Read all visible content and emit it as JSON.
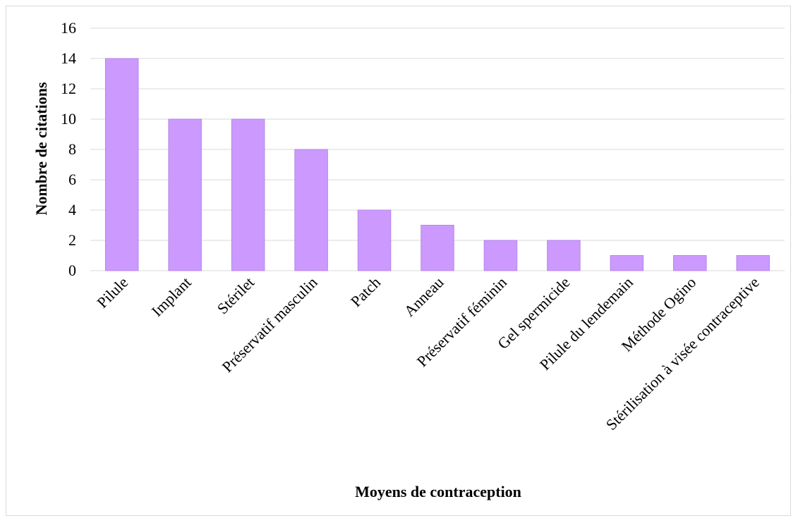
{
  "chart_data": {
    "type": "bar",
    "title": "",
    "xlabel": "Moyens de contraception",
    "ylabel": "Nombre de citations",
    "categories": [
      "Pilule",
      "Implant",
      "Stérilet",
      "Préservatif masculin",
      "Patch",
      "Anneau",
      "Préservatif féminin",
      "Gel spermicide",
      "Pilule du lendemain",
      "Méthode Ogino",
      "Stérilisation à visée contraceptive"
    ],
    "values": [
      14,
      10,
      10,
      8,
      4,
      3,
      2,
      2,
      1,
      1,
      1
    ],
    "ylim": [
      0,
      16
    ],
    "yticks": [
      0,
      2,
      4,
      6,
      8,
      10,
      12,
      14,
      16
    ],
    "grid": true,
    "legend": "none",
    "bar_color": "#cc99ff",
    "bar_edge_color": "#b388e6",
    "grid_color": "#d9d9d9"
  }
}
